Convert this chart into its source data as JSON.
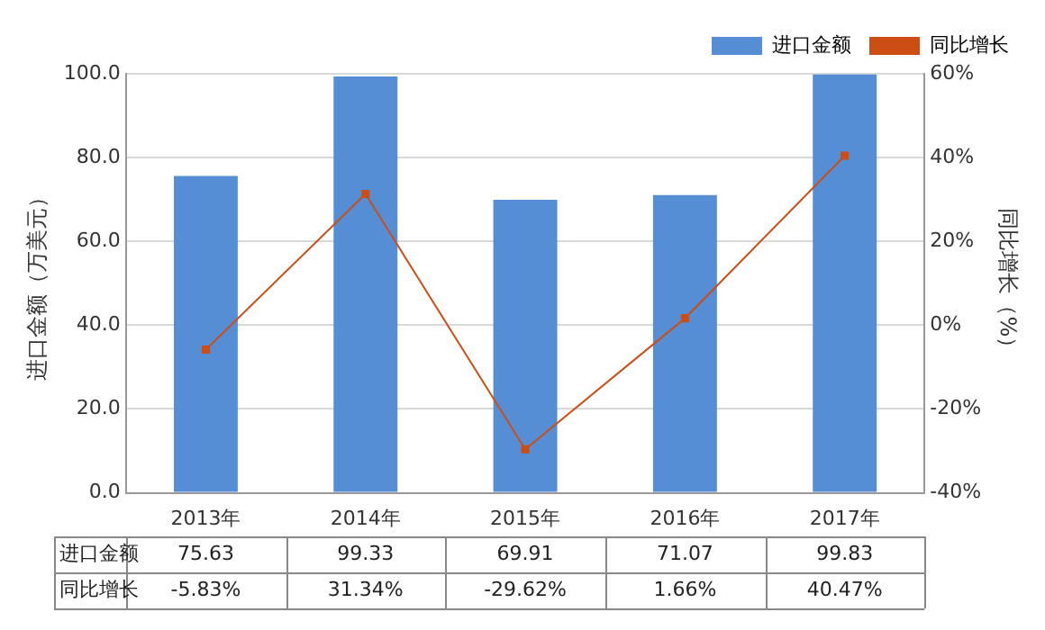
{
  "chart_data": {
    "type": "bar",
    "categories": [
      "2013年",
      "2014年",
      "2015年",
      "2016年",
      "2017年"
    ],
    "ylabel": "进口金额（万美元）",
    "y2label": "同比增长（%）",
    "ylim": [
      0,
      100
    ],
    "yticks": [
      {
        "value": 0,
        "label": "0.0"
      },
      {
        "value": 20,
        "label": "20.0"
      },
      {
        "value": 40,
        "label": "40.0"
      },
      {
        "value": 60,
        "label": "60.0"
      },
      {
        "value": 80,
        "label": "80.0"
      },
      {
        "value": 100,
        "label": "100.0"
      }
    ],
    "y2lim": [
      -40,
      60
    ],
    "y2ticks": [
      {
        "value": -40,
        "label": "-40%"
      },
      {
        "value": -20,
        "label": "-20%"
      },
      {
        "value": 0,
        "label": "0%"
      },
      {
        "value": 20,
        "label": "20%"
      },
      {
        "value": 40,
        "label": "40%"
      },
      {
        "value": 60,
        "label": "60%"
      }
    ],
    "grid": "y",
    "legend": "top right",
    "series": [
      {
        "name": "进口金额",
        "color": "#558ed5",
        "values": [
          75.63,
          99.33,
          69.91,
          71.07,
          99.83
        ],
        "value_labels": [
          "75.63",
          "99.33",
          "69.91",
          "71.07",
          "99.83"
        ]
      },
      {
        "name": "同比增长",
        "type": "line",
        "axis": "y2",
        "color": "#cc4e14",
        "marker": "square",
        "values": [
          -5.83,
          31.34,
          -29.62,
          1.66,
          40.47
        ],
        "value_labels": [
          "-5.83%",
          "31.34%",
          "-29.62%",
          "1.66%",
          "40.47%"
        ]
      }
    ]
  }
}
